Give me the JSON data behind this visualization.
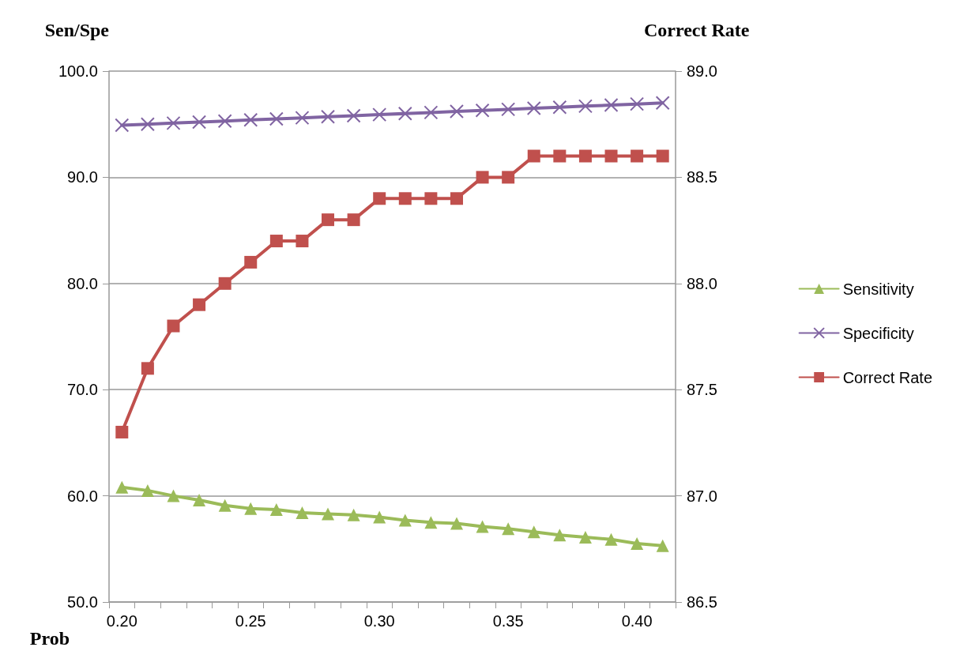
{
  "chart_data": {
    "type": "line",
    "xlabel": "Prob",
    "ylabel": "Sen/Spe",
    "y2label": "Correct Rate",
    "categories": [
      "0.20",
      null,
      null,
      null,
      null,
      "0.25",
      null,
      null,
      null,
      null,
      "0.30",
      null,
      null,
      null,
      null,
      "0.35",
      null,
      null,
      null,
      null,
      "0.40",
      null
    ],
    "series": [
      {
        "name": "Sensitivity",
        "color": "#9bbb59",
        "marker": "triangle",
        "values": [
          60.8,
          60.5,
          60.0,
          59.6,
          59.1,
          58.8,
          58.7,
          58.4,
          58.3,
          58.2,
          58.0,
          57.7,
          57.5,
          57.4,
          57.1,
          56.9,
          56.6,
          56.3,
          56.1,
          55.9,
          55.5,
          55.3
        ]
      },
      {
        "name": "Specificity",
        "color": "#8064a2",
        "marker": "cross",
        "values": [
          94.9,
          95.0,
          95.1,
          95.2,
          95.3,
          95.4,
          95.5,
          95.6,
          95.7,
          95.8,
          95.9,
          96.0,
          96.1,
          96.2,
          96.3,
          96.4,
          96.5,
          96.6,
          96.7,
          96.8,
          96.9,
          97.0
        ]
      },
      {
        "name": "Correct Rate",
        "color": "#c0504d",
        "marker": "square",
        "axis": "y2",
        "values": [
          87.3,
          87.6,
          87.8,
          87.9,
          88.0,
          88.1,
          88.2,
          88.2,
          88.3,
          88.3,
          88.4,
          88.4,
          88.4,
          88.4,
          88.5,
          88.5,
          88.6,
          88.6,
          88.6,
          88.6,
          88.6,
          88.6
        ]
      }
    ],
    "ylim": [
      50,
      100
    ],
    "yticks": [
      {
        "value": 50,
        "label": "50.0"
      },
      {
        "value": 60,
        "label": "60.0"
      },
      {
        "value": 70,
        "label": "70.0"
      },
      {
        "value": 80,
        "label": "80.0"
      },
      {
        "value": 90,
        "label": "90.0"
      },
      {
        "value": 100,
        "label": "100.0"
      }
    ],
    "y2lim": [
      86.5,
      89
    ],
    "y2ticks": [
      {
        "value": 86.5,
        "label": "86.5"
      },
      {
        "value": 87,
        "label": "87.0"
      },
      {
        "value": 87.5,
        "label": "87.5"
      },
      {
        "value": 88,
        "label": "88.0"
      },
      {
        "value": 88.5,
        "label": "88.5"
      },
      {
        "value": 89,
        "label": "89.0"
      }
    ],
    "grid": "y",
    "legend": "right",
    "line_style": "solid"
  }
}
